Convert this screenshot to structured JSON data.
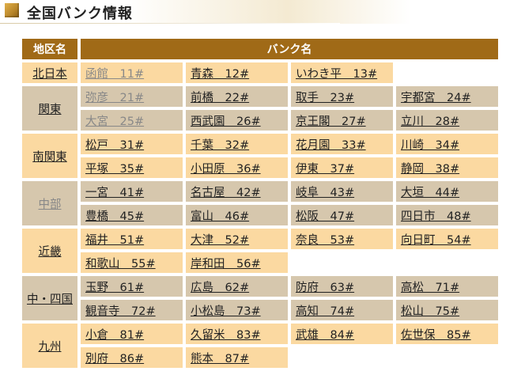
{
  "page": {
    "title": "全国バンク情報"
  },
  "table": {
    "headers": {
      "region": "地区名",
      "bank": "バンク名"
    },
    "regions": [
      {
        "name": "北日本",
        "rows": [
          [
            {
              "name": "函館",
              "code": "11#",
              "muted": true
            },
            {
              "name": "青森",
              "code": "12#"
            },
            {
              "name": "いわき平",
              "code": "13#"
            }
          ]
        ]
      },
      {
        "name": "関東",
        "rows": [
          [
            {
              "name": "弥彦",
              "code": "21#",
              "muted": true
            },
            {
              "name": "前橋",
              "code": "22#"
            },
            {
              "name": "取手",
              "code": "23#"
            },
            {
              "name": "宇都宮",
              "code": "24#"
            }
          ],
          [
            {
              "name": "大宮",
              "code": "25#",
              "muted": true
            },
            {
              "name": "西武園",
              "code": "26#"
            },
            {
              "name": "京王閣",
              "code": "27#"
            },
            {
              "name": "立川",
              "code": "28#"
            }
          ]
        ]
      },
      {
        "name": "南関東",
        "rows": [
          [
            {
              "name": "松戸",
              "code": "31#"
            },
            {
              "name": "千葉",
              "code": "32#"
            },
            {
              "name": "花月園",
              "code": "33#"
            },
            {
              "name": "川崎",
              "code": "34#"
            }
          ],
          [
            {
              "name": "平塚",
              "code": "35#"
            },
            {
              "name": "小田原",
              "code": "36#"
            },
            {
              "name": "伊東",
              "code": "37#"
            },
            {
              "name": "静岡",
              "code": "38#"
            }
          ]
        ]
      },
      {
        "name": "中部",
        "muted": true,
        "rows": [
          [
            {
              "name": "一宮",
              "code": "41#"
            },
            {
              "name": "名古屋",
              "code": "42#"
            },
            {
              "name": "岐阜",
              "code": "43#"
            },
            {
              "name": "大垣",
              "code": "44#"
            }
          ],
          [
            {
              "name": "豊橋",
              "code": "45#"
            },
            {
              "name": "富山",
              "code": "46#"
            },
            {
              "name": "松阪",
              "code": "47#"
            },
            {
              "name": "四日市",
              "code": "48#"
            }
          ]
        ]
      },
      {
        "name": "近畿",
        "rows": [
          [
            {
              "name": "福井",
              "code": "51#"
            },
            {
              "name": "大津",
              "code": "52#"
            },
            {
              "name": "奈良",
              "code": "53#"
            },
            {
              "name": "向日町",
              "code": "54#"
            }
          ],
          [
            {
              "name": "和歌山",
              "code": "55#"
            },
            {
              "name": "岸和田",
              "code": "56#"
            }
          ]
        ]
      },
      {
        "name": "中・四国",
        "rows": [
          [
            {
              "name": "玉野",
              "code": "61#"
            },
            {
              "name": "広島",
              "code": "62#"
            },
            {
              "name": "防府",
              "code": "63#"
            },
            {
              "name": "高松",
              "code": "71#"
            }
          ],
          [
            {
              "name": "観音寺",
              "code": "72#"
            },
            {
              "name": "小松島",
              "code": "73#"
            },
            {
              "name": "高知",
              "code": "74#"
            },
            {
              "name": "松山",
              "code": "75#"
            }
          ]
        ]
      },
      {
        "name": "九州",
        "rows": [
          [
            {
              "name": "小倉",
              "code": "81#"
            },
            {
              "name": "久留米",
              "code": "83#"
            },
            {
              "name": "武雄",
              "code": "84#"
            },
            {
              "name": "佐世保",
              "code": "85#"
            }
          ],
          [
            {
              "name": "別府",
              "code": "86#"
            },
            {
              "name": "熊本",
              "code": "87#"
            }
          ]
        ]
      }
    ]
  },
  "colors": {
    "header_bg": "#a06a17",
    "cream": "#fbd9a1",
    "tan": "#d6c7ad"
  }
}
